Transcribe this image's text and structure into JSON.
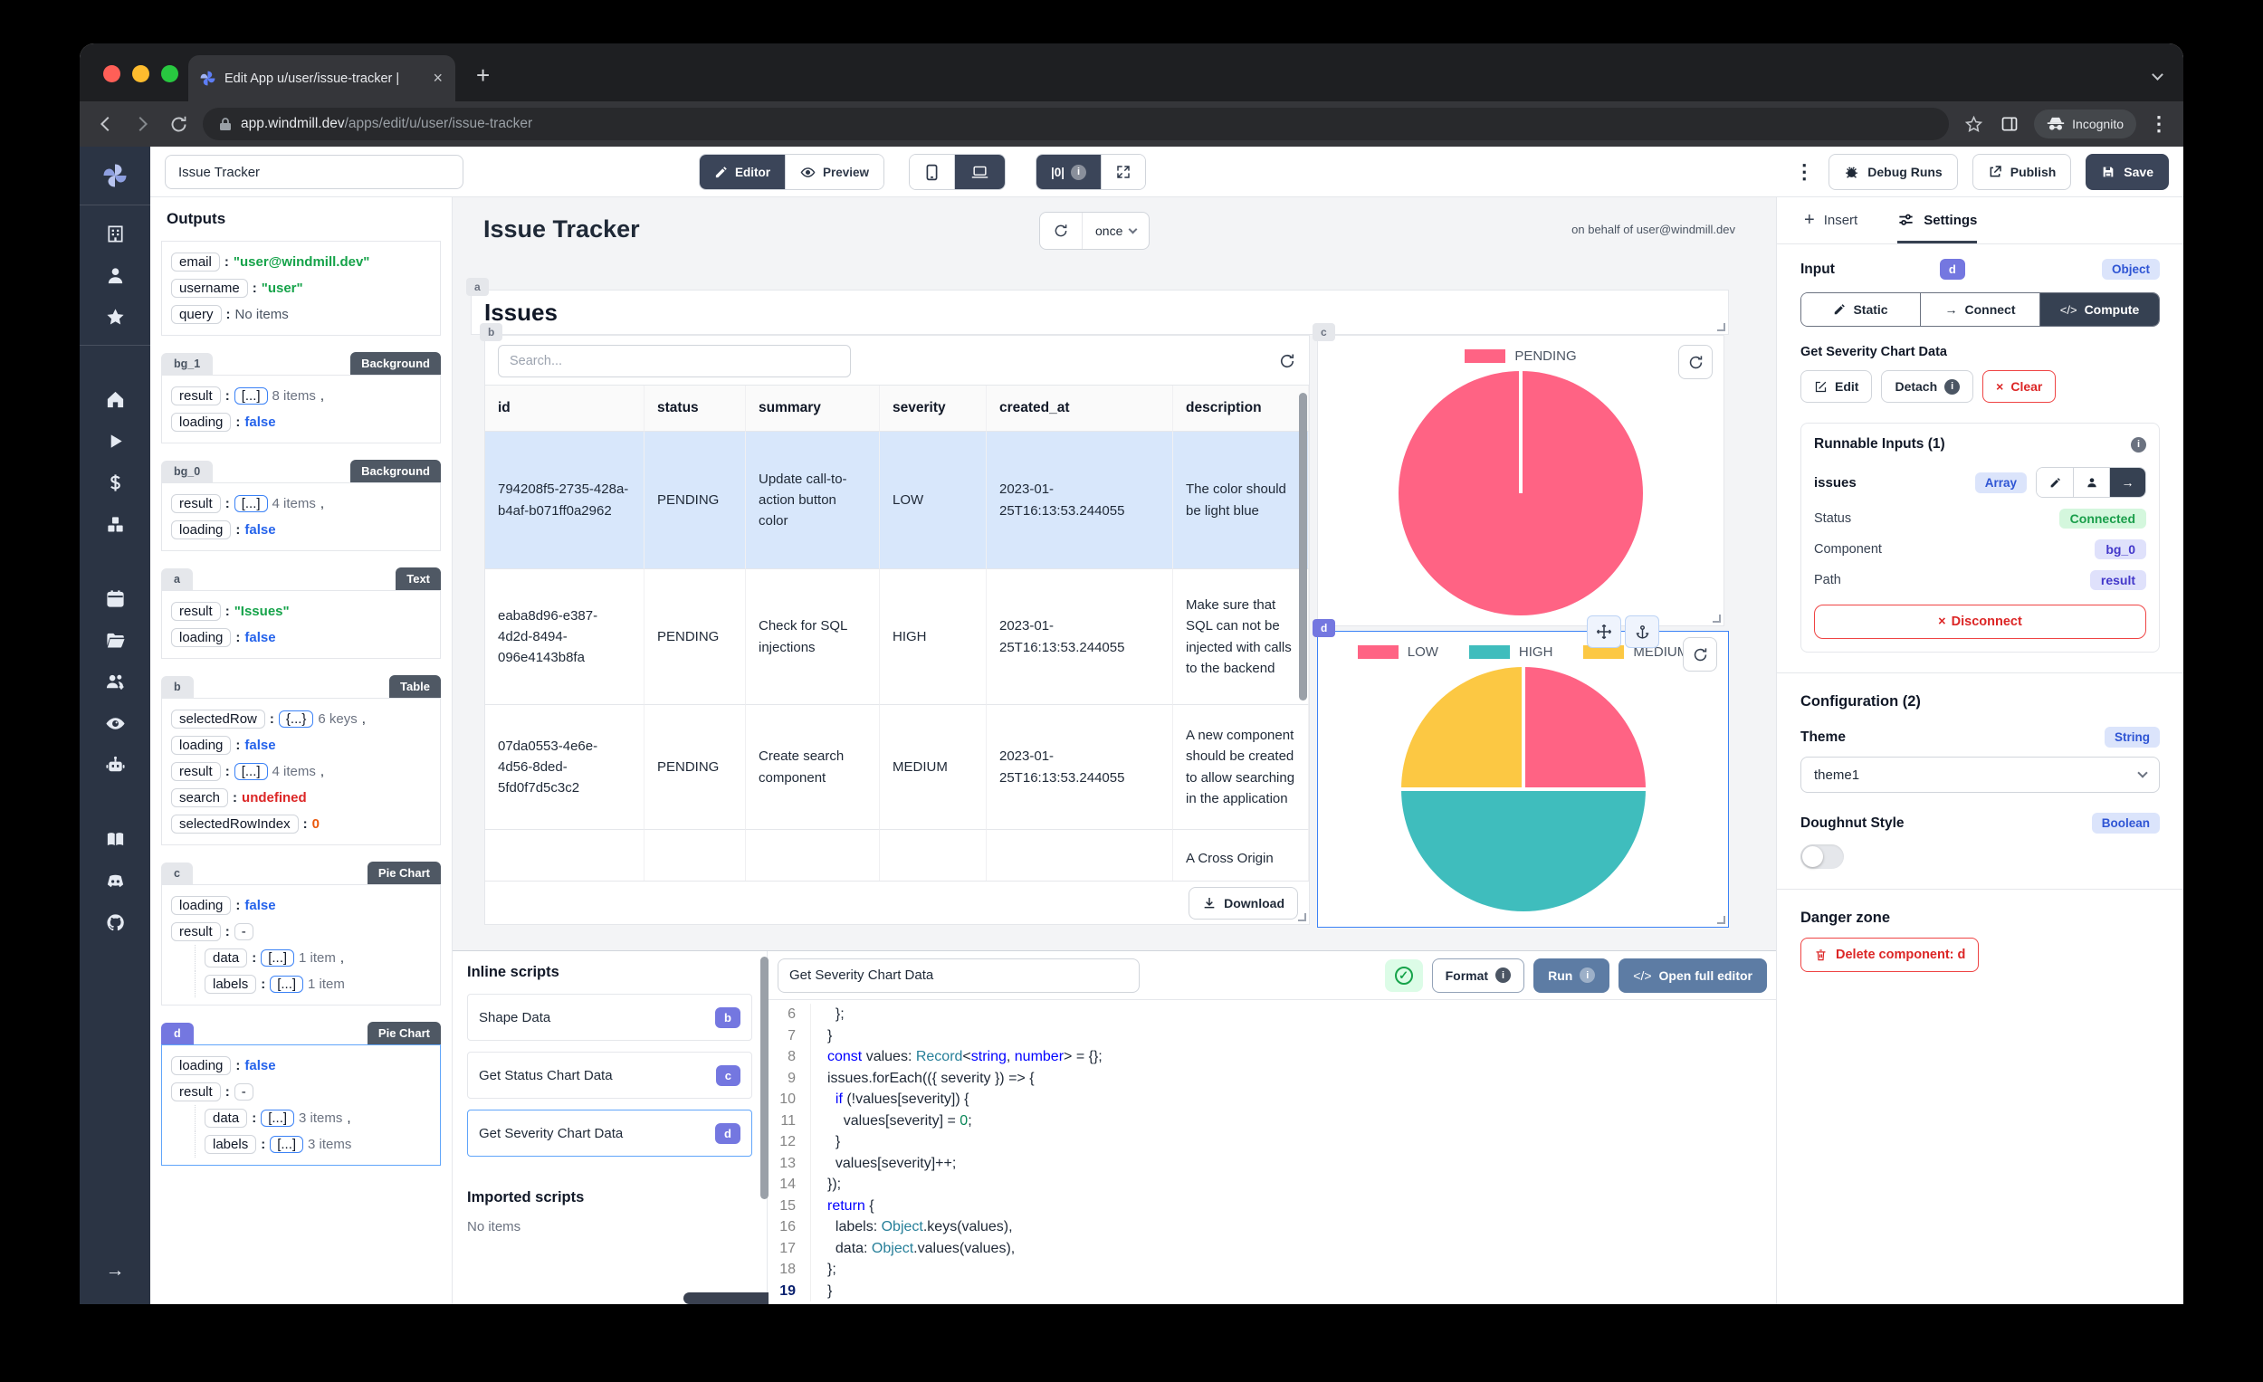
{
  "browser": {
    "tab": {
      "title": "Edit App u/user/issue-tracker |",
      "close_glyph": "×",
      "new_tab_glyph": "+"
    },
    "url": {
      "host": "app.windmill.dev",
      "path": "/apps/edit/u/user/issue-tracker"
    },
    "incognito_label": "Incognito"
  },
  "topbar": {
    "app_name_value": "Issue Tracker",
    "editor_label": "Editor",
    "preview_label": "Preview",
    "outputs_toggle_label": "|0|",
    "debug_runs_label": "Debug Runs",
    "publish_label": "Publish",
    "save_label": "Save"
  },
  "rail": {
    "icons": [
      "building",
      "user",
      "star",
      "home",
      "play",
      "dollar",
      "cubes",
      "calendar",
      "folder",
      "users-gear",
      "eye",
      "robot",
      "book",
      "discord",
      "github"
    ],
    "groups_after": [
      "star"
    ],
    "bottom_icon": "arrow-right"
  },
  "outputs_panel": {
    "title": "Outputs",
    "cards": [
      {
        "id": "",
        "type": "",
        "selected": false,
        "rows": [
          {
            "key": "email",
            "value": "\"user@windmill.dev\"",
            "vt": "str"
          },
          {
            "key": "username",
            "value": "\"user\"",
            "vt": "str"
          },
          {
            "key": "query",
            "value": "No items",
            "vt": "plain"
          }
        ]
      },
      {
        "id": "bg_1",
        "type": "Background",
        "selected": false,
        "rows": [
          {
            "key": "result",
            "bracket": "[...]",
            "value": "8 items",
            "vt": "muted",
            "comma": true
          },
          {
            "key": "loading",
            "value": "false",
            "vt": "bool"
          }
        ]
      },
      {
        "id": "bg_0",
        "type": "Background",
        "selected": false,
        "rows": [
          {
            "key": "result",
            "bracket": "[...]",
            "value": "4 items",
            "vt": "muted",
            "comma": true
          },
          {
            "key": "loading",
            "value": "false",
            "vt": "bool"
          }
        ]
      },
      {
        "id": "a",
        "type": "Text",
        "selected": false,
        "rows": [
          {
            "key": "result",
            "value": "\"Issues\"",
            "vt": "str"
          },
          {
            "key": "loading",
            "value": "false",
            "vt": "bool"
          }
        ]
      },
      {
        "id": "b",
        "type": "Table",
        "selected": false,
        "rows": [
          {
            "key": "selectedRow",
            "bracket": "{...}",
            "value": "6 keys",
            "vt": "muted",
            "comma": true
          },
          {
            "key": "loading",
            "value": "false",
            "vt": "bool"
          },
          {
            "key": "result",
            "bracket": "[...]",
            "value": "4 items",
            "vt": "muted",
            "comma": true
          },
          {
            "key": "search",
            "value": "undefined",
            "vt": "undef"
          },
          {
            "key": "selectedRowIndex",
            "value": "0",
            "vt": "num"
          }
        ]
      },
      {
        "id": "c",
        "type": "Pie Chart",
        "selected": false,
        "rows": [
          {
            "key": "loading",
            "value": "false",
            "vt": "bool"
          },
          {
            "key": "result",
            "bracket": "-",
            "dash": true,
            "value": "",
            "vt": "muted"
          },
          {
            "key": "data",
            "bracket": "[...]",
            "value": "1 item",
            "vt": "muted",
            "comma": true,
            "indent": true
          },
          {
            "key": "labels",
            "bracket": "[...]",
            "value": "1 item",
            "vt": "muted",
            "indent": true
          }
        ]
      },
      {
        "id": "d",
        "type": "Pie Chart",
        "selected": true,
        "rows": [
          {
            "key": "loading",
            "value": "false",
            "vt": "bool"
          },
          {
            "key": "result",
            "bracket": "-",
            "dash": true,
            "value": "",
            "vt": "muted"
          },
          {
            "key": "data",
            "bracket": "[...]",
            "value": "3 items",
            "vt": "muted",
            "comma": true,
            "indent": true
          },
          {
            "key": "labels",
            "bracket": "[...]",
            "value": "3 items",
            "vt": "muted",
            "indent": true
          }
        ]
      }
    ]
  },
  "canvas": {
    "header": {
      "title": "Issue Tracker",
      "mode": "once",
      "on_behalf": "on behalf of user@windmill.dev"
    },
    "text_component": {
      "badge": "a",
      "value": "Issues"
    },
    "table": {
      "badge": "b",
      "search_placeholder": "Search...",
      "columns": [
        "id",
        "status",
        "summary",
        "severity",
        "created_at",
        "description"
      ],
      "rows": [
        {
          "selected": true,
          "cells": [
            "794208f5-2735-428a-b4af-b071ff0a2962",
            "PENDING",
            "Update call-to-action button color",
            "LOW",
            "2023-01-25T16:13:53.244055",
            "The color should be light blue"
          ]
        },
        {
          "selected": false,
          "cells": [
            "eaba8d96-e387-4d2d-8494-096e4143b8fa",
            "PENDING",
            "Check for SQL injections",
            "HIGH",
            "2023-01-25T16:13:53.244055",
            "Make sure that SQL can not be injected with calls to the backend"
          ]
        },
        {
          "selected": false,
          "cells": [
            "07da0553-4e6e-4d56-8ded-5fd0f7d5c3c2",
            "PENDING",
            "Create search component",
            "MEDIUM",
            "2023-01-25T16:13:53.244055",
            "A new component should be created to allow searching in the application"
          ]
        },
        {
          "selected": false,
          "cells": [
            "",
            "",
            "",
            "",
            "",
            "A Cross Origin"
          ]
        }
      ],
      "download_label": "Download"
    },
    "chart_c": {
      "badge": "c",
      "chart_data": {
        "type": "pie",
        "labels": [
          "PENDING"
        ],
        "values": [
          4
        ],
        "colors": [
          "#ff6384"
        ],
        "legend_position": "top"
      }
    },
    "chart_d": {
      "badge": "d",
      "chart_data": {
        "type": "pie",
        "labels": [
          "LOW",
          "HIGH",
          "MEDIUM"
        ],
        "values": [
          1,
          2,
          1
        ],
        "colors": [
          "#ff6384",
          "#3fbdbd",
          "#fcc843"
        ],
        "legend_position": "top"
      }
    }
  },
  "inline_scripts": {
    "title": "Inline scripts",
    "items": [
      {
        "label": "Shape Data",
        "badge": "b",
        "selected": false
      },
      {
        "label": "Get Status Chart Data",
        "badge": "c",
        "selected": false
      },
      {
        "label": "Get Severity Chart Data",
        "badge": "d",
        "selected": true
      }
    ],
    "imported_title": "Imported scripts",
    "imported_empty": "No items"
  },
  "editor": {
    "name_value": "Get Severity Chart Data",
    "format_label": "Format",
    "run_label": "Run",
    "open_full_label": "Open full editor",
    "code_glyph": "</>",
    "lines": [
      {
        "n": 6,
        "tokens": [
          [
            "pln",
            "  };"
          ]
        ]
      },
      {
        "n": 7,
        "tokens": [
          [
            "pln",
            "}"
          ]
        ]
      },
      {
        "n": 8,
        "tokens": [
          [
            "kw",
            "const"
          ],
          [
            "pln",
            " values: "
          ],
          [
            "typ",
            "Record"
          ],
          [
            "pln",
            "<"
          ],
          [
            "kw",
            "string"
          ],
          [
            "pln",
            ", "
          ],
          [
            "kw",
            "number"
          ],
          [
            "pln",
            "> = {};"
          ]
        ]
      },
      {
        "n": 9,
        "tokens": [
          [
            "pln",
            "issues.forEach(({ severity }) => {"
          ]
        ]
      },
      {
        "n": 10,
        "tokens": [
          [
            "pln",
            "  "
          ],
          [
            "kw",
            "if"
          ],
          [
            "pln",
            " (!values[severity]) {"
          ]
        ]
      },
      {
        "n": 11,
        "tokens": [
          [
            "pln",
            "    values[severity] = "
          ],
          [
            "num",
            "0"
          ],
          [
            "pln",
            ";"
          ]
        ]
      },
      {
        "n": 12,
        "tokens": [
          [
            "pln",
            "  }"
          ]
        ]
      },
      {
        "n": 13,
        "tokens": [
          [
            "pln",
            "  values[severity]++;"
          ]
        ]
      },
      {
        "n": 14,
        "tokens": [
          [
            "pln",
            "});"
          ]
        ]
      },
      {
        "n": 15,
        "tokens": [
          [
            "kw",
            "return"
          ],
          [
            "pln",
            " {"
          ]
        ]
      },
      {
        "n": 16,
        "tokens": [
          [
            "pln",
            "  labels: "
          ],
          [
            "typ",
            "Object"
          ],
          [
            "pln",
            ".keys(values),"
          ]
        ]
      },
      {
        "n": 17,
        "tokens": [
          [
            "pln",
            "  data: "
          ],
          [
            "typ",
            "Object"
          ],
          [
            "pln",
            ".values(values),"
          ]
        ]
      },
      {
        "n": 18,
        "tokens": [
          [
            "pln",
            "};"
          ]
        ]
      },
      {
        "n": 19,
        "tokens": [
          [
            "pln",
            "}"
          ]
        ],
        "active": true
      }
    ]
  },
  "settings": {
    "tabs": {
      "insert": "Insert",
      "settings": "Settings"
    },
    "input": {
      "title": "Input",
      "badge": "d",
      "type_badge": "Object",
      "static_label": "Static",
      "connect_label": "Connect",
      "compute_label": "Compute"
    },
    "script": {
      "title": "Get Severity Chart Data",
      "edit_label": "Edit",
      "detach_label": "Detach",
      "clear_label": "Clear",
      "clear_x": "×"
    },
    "runnable": {
      "title": "Runnable Inputs (1)",
      "field_name": "issues",
      "field_type": "Array",
      "status_label": "Status",
      "status_value": "Connected",
      "component_label": "Component",
      "component_value": "bg_0",
      "path_label": "Path",
      "path_value": "result",
      "disconnect_label": "Disconnect",
      "disconnect_x": "×"
    },
    "configuration": {
      "title": "Configuration (2)",
      "theme_label": "Theme",
      "theme_type": "String",
      "theme_value": "theme1",
      "doughnut_label": "Doughnut Style",
      "doughnut_type": "Boolean"
    },
    "danger": {
      "title": "Danger zone",
      "delete_label": "Delete component: d"
    }
  },
  "theme_colors": {
    "pink": "#ff6384",
    "teal": "#3fbdbd",
    "yellow": "#fcc843",
    "indigo_badge": "#7477e0",
    "dark_button": "#3b4559",
    "steel_button": "#5d7ca4",
    "connected_green": "#1a9e4b",
    "danger_red": "#dc2626",
    "selected_row": "#d8e7fb"
  }
}
